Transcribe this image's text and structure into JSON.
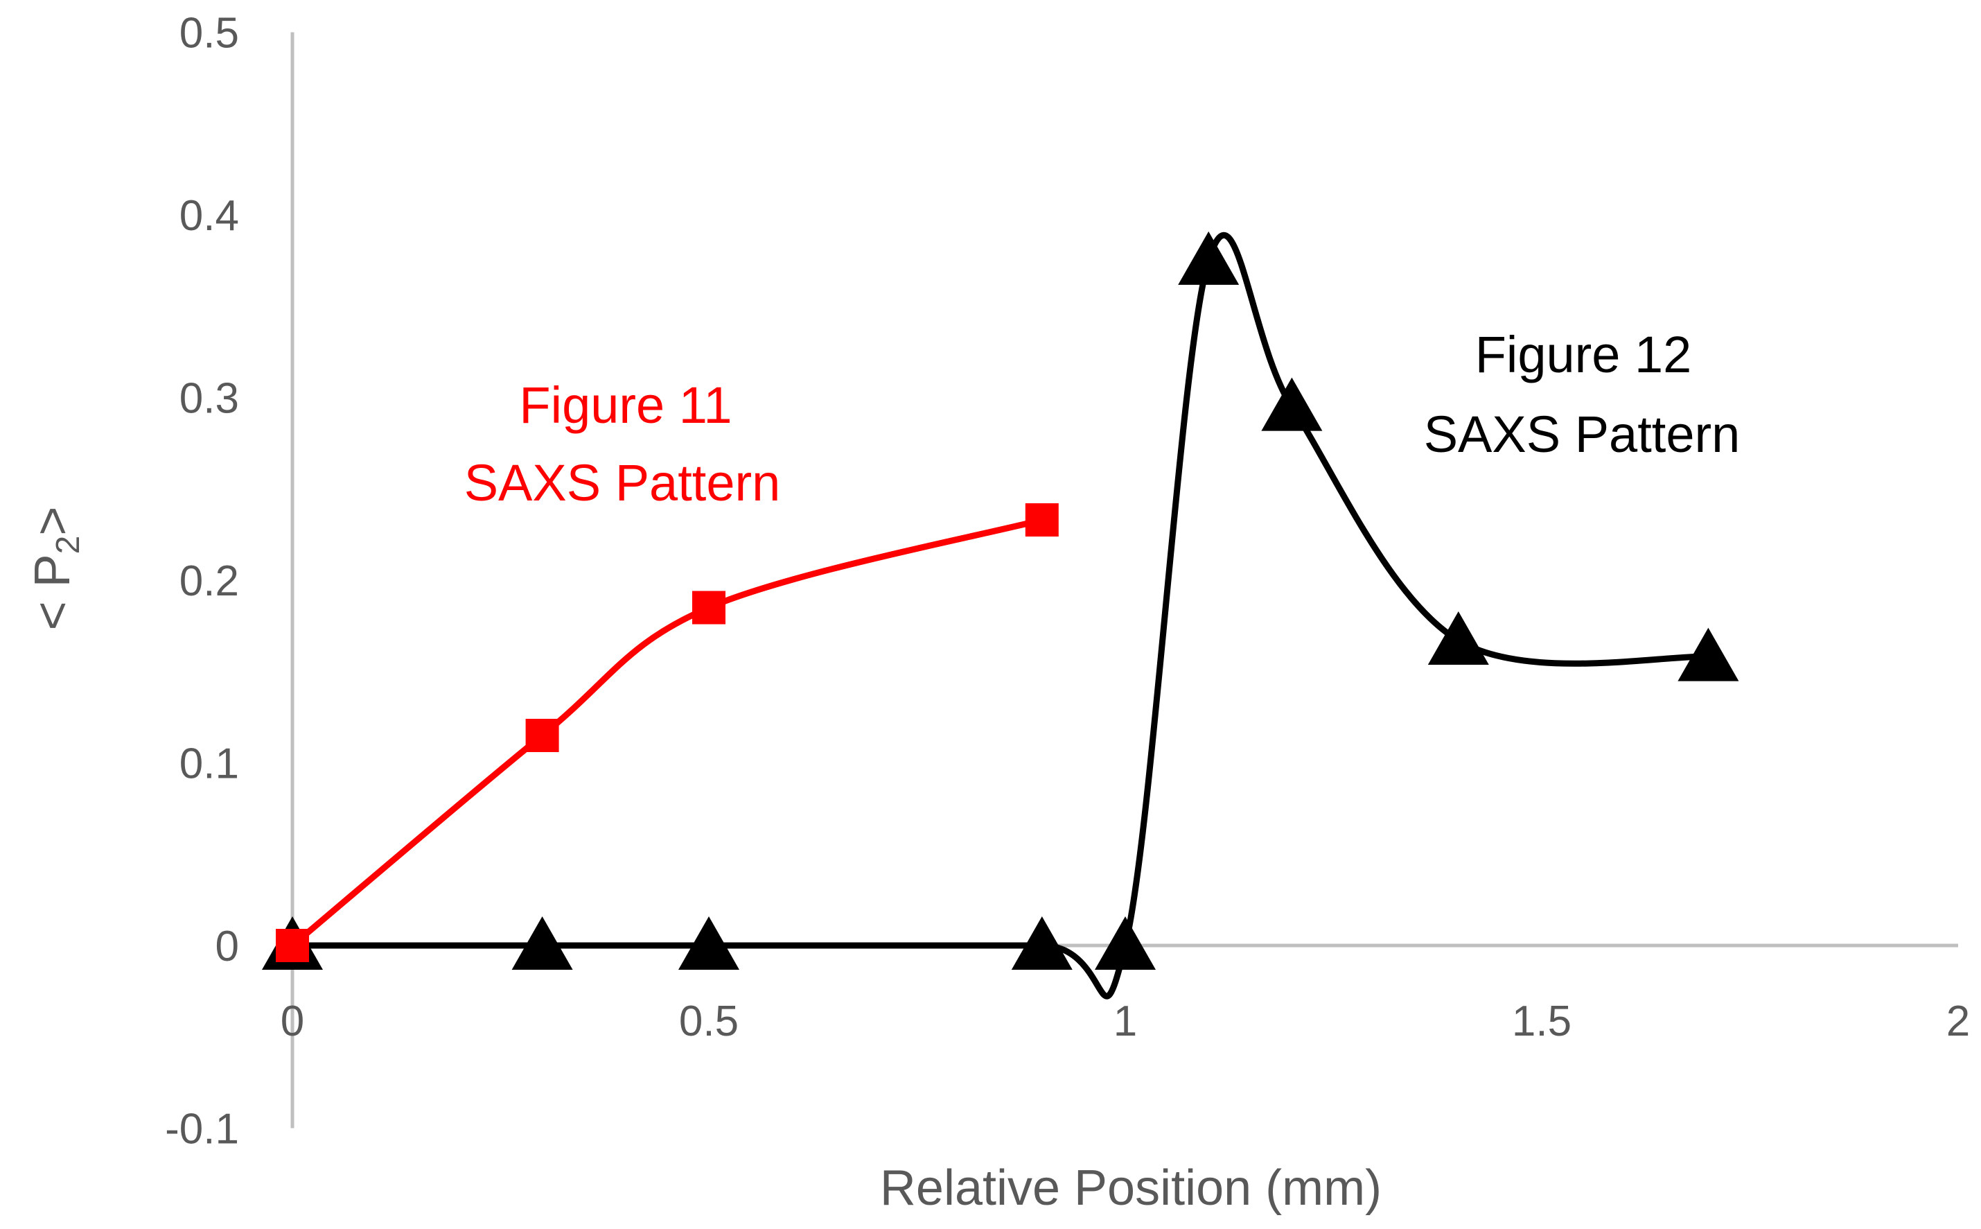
{
  "chart_data": {
    "type": "scatter",
    "xlabel": "Relative Position (mm)",
    "ylabel_main": "< P",
    "ylabel_sub": "2",
    "ylabel_end": ">",
    "xlim": [
      0,
      2
    ],
    "ylim": [
      -0.1,
      0.5
    ],
    "x_ticks": [
      "0",
      "0.5",
      "1",
      "1.5",
      "2"
    ],
    "y_ticks": [
      "0.5",
      "0.4",
      "0.3",
      "0.2",
      "0.1",
      "0",
      "-0.1"
    ],
    "grid": false,
    "series": [
      {
        "marker": "square",
        "color": "#ff0000",
        "smooth": true,
        "x": [
          0,
          0.3,
          0.5,
          0.9
        ],
        "y": [
          0.0,
          0.115,
          0.185,
          0.233
        ]
      },
      {
        "marker": "triangle",
        "color": "#000000",
        "smooth": true,
        "x": [
          0,
          0.3,
          0.5,
          0.9,
          1.0,
          1.1,
          1.2,
          1.4,
          1.7
        ],
        "y": [
          0.0,
          0.0,
          0.0,
          0.0,
          0.0,
          0.375,
          0.295,
          0.167,
          0.158
        ]
      }
    ],
    "annotations": [
      {
        "line1": "Figure 11",
        "line2": "SAXS Pattern",
        "color": "#ff0000"
      },
      {
        "line1": "Figure 12",
        "line2": "SAXS Pattern",
        "color": "#000000"
      }
    ]
  }
}
